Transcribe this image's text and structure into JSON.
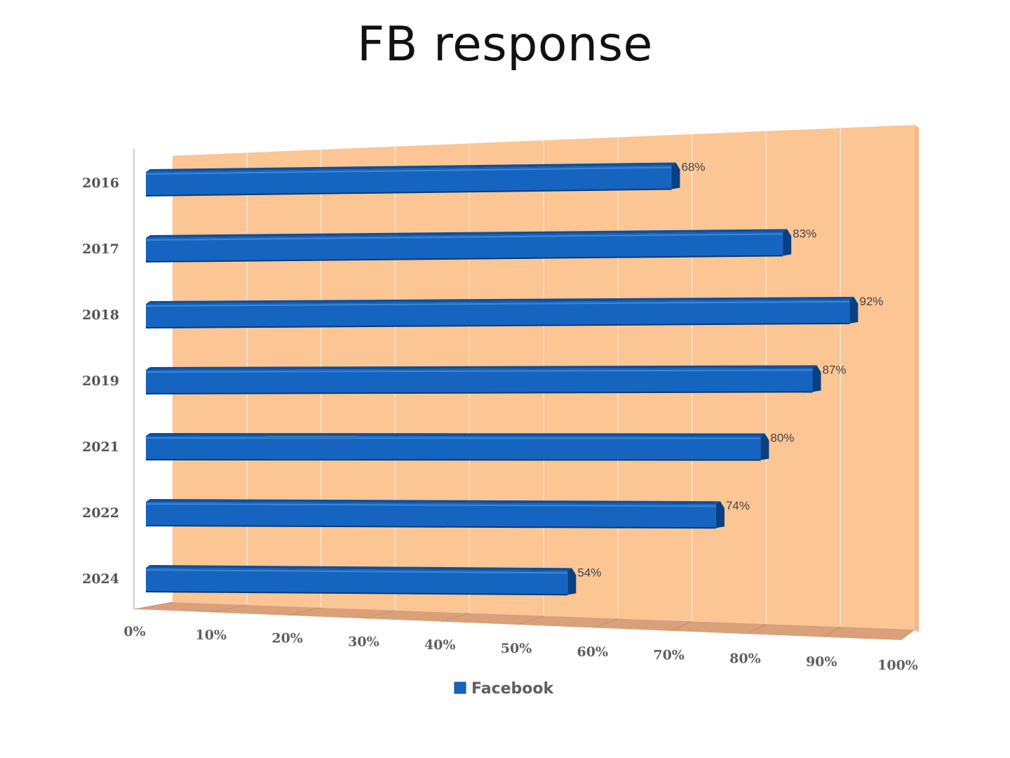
{
  "slide": {
    "title": "FB response"
  },
  "chart_data": {
    "type": "bar",
    "orientation": "horizontal",
    "style": "3d",
    "title": "",
    "categories": [
      "2016",
      "2017",
      "2018",
      "2019",
      "2021",
      "2022",
      "2024"
    ],
    "series": [
      {
        "name": "Facebook",
        "values": [
          68,
          83,
          92,
          87,
          80,
          74,
          54
        ],
        "data_labels": [
          "68%",
          "83%",
          "92%",
          "87%",
          "80%",
          "74%",
          "54%"
        ]
      }
    ],
    "x_ticks": [
      "0%",
      "10%",
      "20%",
      "30%",
      "40%",
      "50%",
      "60%",
      "70%",
      "80%",
      "90%",
      "100%"
    ],
    "xlim": [
      0,
      100
    ],
    "xlabel": "",
    "ylabel": "",
    "grid": true,
    "legend_position": "bottom",
    "colors": {
      "bar": "#1565c0",
      "bar_top": "#0d4f9e",
      "bar_end": "#0b3f80",
      "wall": "#fbc594",
      "floor": "#d9a07a",
      "gridline": "#ffffff"
    }
  }
}
